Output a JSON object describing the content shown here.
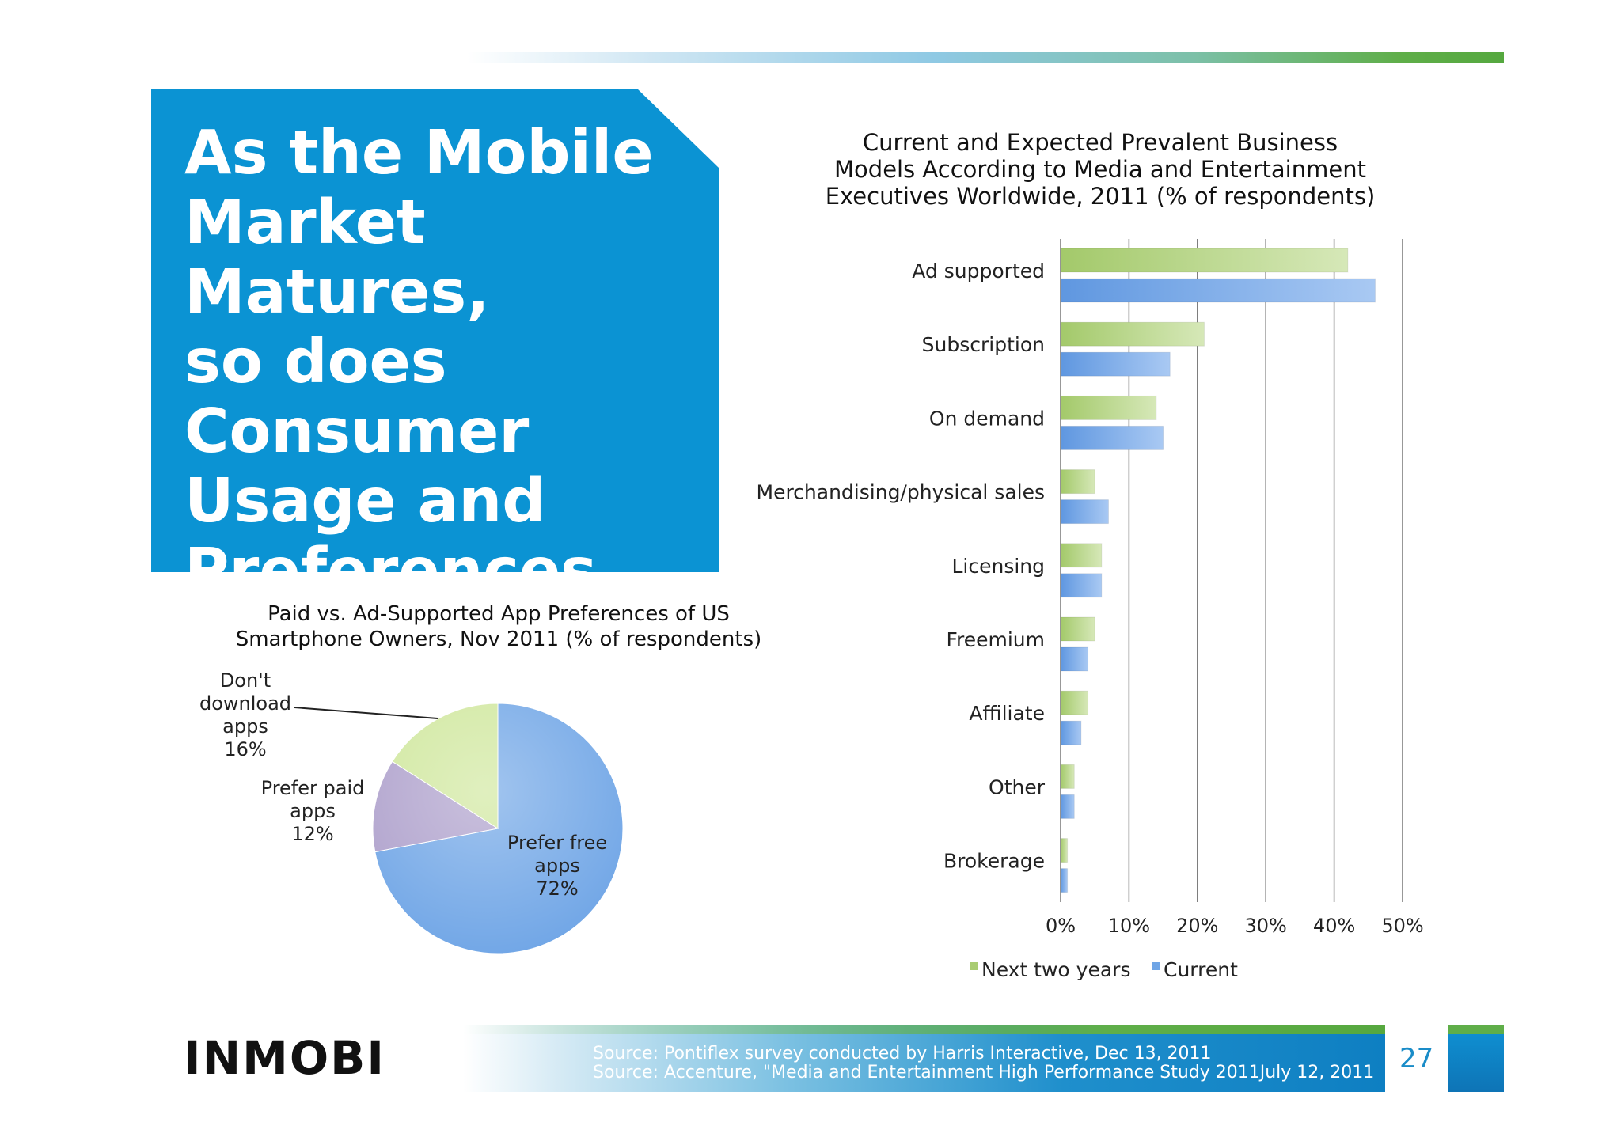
{
  "slide": {
    "title": "As the Mobile\nMarket Matures,\nso does\nConsumer\nUsage and\nPreferences",
    "logo_text": "INMOBI",
    "page_number": "27",
    "sources": [
      "Source: Pontiflex survey conducted by Harris Interactive, Dec 13, 2011",
      "Source: Accenture, \"Media and Entertainment High Performance Study 2011July 12, 2011"
    ]
  },
  "chart_data": [
    {
      "type": "pie",
      "title": "Paid vs. Ad-Supported App Preferences of US\nSmartphone Owners, Nov 2011 (% of respondents)",
      "slices": [
        {
          "label": "Prefer free apps",
          "value": 72,
          "value_label": "72%",
          "color": "#6fa5e6"
        },
        {
          "label": "Prefer paid apps",
          "value": 12,
          "value_label": "12%",
          "color": "#ad9fcb"
        },
        {
          "label": "Don't download apps",
          "value": 16,
          "value_label": "16%",
          "color": "#cfe79c"
        }
      ]
    },
    {
      "type": "bar",
      "orientation": "horizontal",
      "title": "Current and Expected Prevalent Business\nModels According to Media and Entertainment\nExecutives Worldwide, 2011 (% of respondents)",
      "categories": [
        "Ad supported",
        "Subscription",
        "On demand",
        "Merchandising/physical sales",
        "Licensing",
        "Freemium",
        "Affiliate",
        "Other",
        "Brokerage"
      ],
      "series": [
        {
          "name": "Next two years",
          "color": "#a9cc72",
          "values": [
            42,
            21,
            14,
            5,
            6,
            5,
            4,
            2,
            1
          ]
        },
        {
          "name": "Current",
          "color": "#6fa5e6",
          "values": [
            46,
            16,
            15,
            7,
            6,
            4,
            3,
            2,
            1
          ]
        }
      ],
      "xlim": [
        0,
        50
      ],
      "xticks": [
        "0%",
        "10%",
        "20%",
        "30%",
        "40%",
        "50%"
      ],
      "grid": true,
      "legend_position": "bottom"
    }
  ]
}
